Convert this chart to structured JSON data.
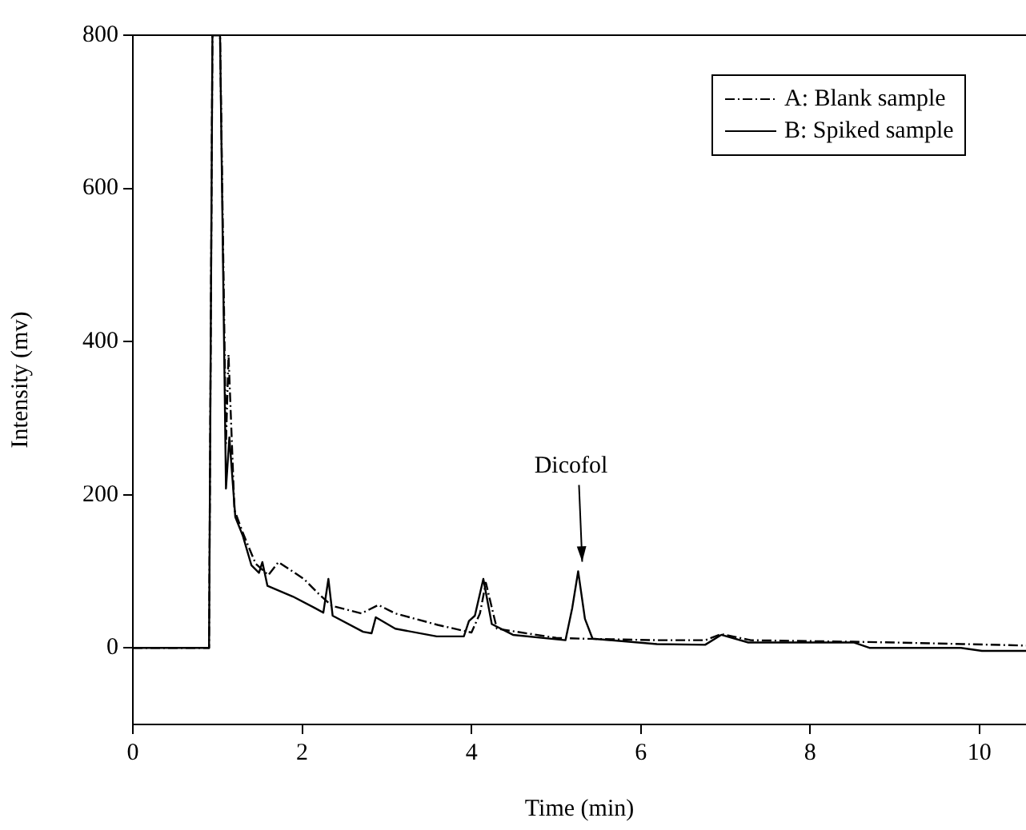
{
  "chart_data": {
    "type": "line",
    "xlabel": "Time (min)",
    "ylabel": "Intensity (mv)",
    "xlim": [
      0,
      10.55
    ],
    "xticks": [
      0,
      2,
      4,
      6,
      8,
      10
    ],
    "ylim": [
      -100,
      800
    ],
    "yticks": [
      0,
      200,
      400,
      600,
      800
    ],
    "legend": "top right",
    "grid": false,
    "marker": "none",
    "annotations": [
      {
        "text": "Dicofol",
        "x": 5.27,
        "y": 100
      }
    ],
    "series": [
      {
        "name": "A: Blank sample",
        "color": "#000000",
        "line_style": "dashed",
        "x": [
          0,
          0.9,
          0.94,
          1.03,
          1.1,
          1.13,
          1.2,
          1.3,
          1.45,
          1.55,
          1.6,
          1.72,
          2.02,
          2.2,
          2.35,
          2.7,
          2.9,
          3.1,
          3.6,
          4.0,
          4.1,
          4.17,
          4.3,
          5.0,
          5.3,
          6.2,
          6.76,
          6.95,
          7.3,
          8.5,
          9.0,
          9.8,
          10.55
        ],
        "values": [
          0,
          0,
          800,
          800,
          267,
          383,
          180,
          150,
          110,
          100,
          95,
          112,
          90,
          70,
          55,
          45,
          56,
          45,
          30,
          20,
          45,
          85,
          25,
          13,
          12,
          10,
          10,
          18,
          10,
          8,
          7,
          5,
          3
        ]
      },
      {
        "name": "B: Spiked sample",
        "color": "#000000",
        "line_style": "solid",
        "x": [
          0,
          0.9,
          0.94,
          1.03,
          1.1,
          1.14,
          1.21,
          1.3,
          1.4,
          1.49,
          1.53,
          1.59,
          1.89,
          2.15,
          2.25,
          2.31,
          2.36,
          2.72,
          2.82,
          2.87,
          3.1,
          3.59,
          3.91,
          3.97,
          4.04,
          4.14,
          4.24,
          4.49,
          5.11,
          5.19,
          5.26,
          5.34,
          5.43,
          6.19,
          6.76,
          6.95,
          7.27,
          8.52,
          8.7,
          9.78,
          10.03,
          10.55
        ],
        "values": [
          0,
          0,
          800,
          800,
          208,
          275,
          171,
          146,
          108,
          98,
          112,
          81,
          67,
          52,
          46,
          90,
          42,
          21,
          19,
          40,
          25,
          15,
          15,
          35,
          42,
          90,
          31,
          17,
          10,
          52,
          100,
          38,
          12,
          5,
          4,
          17,
          7,
          7,
          0,
          0,
          -4,
          -4
        ]
      }
    ]
  }
}
